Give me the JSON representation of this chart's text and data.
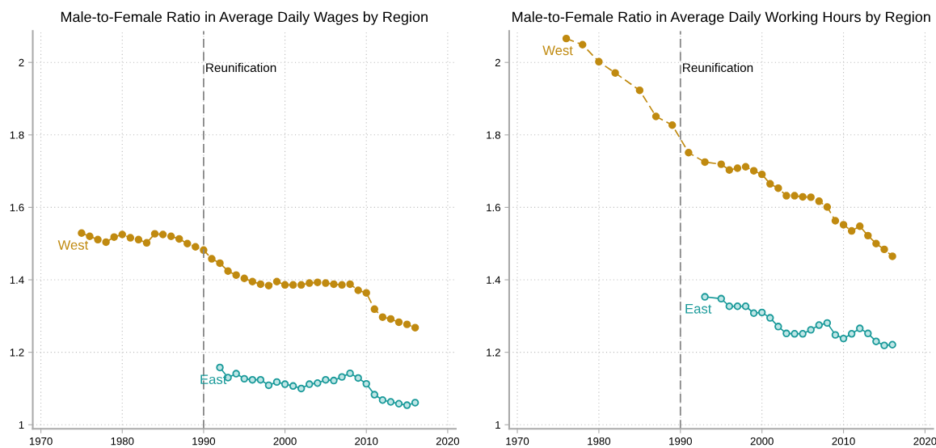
{
  "chart_data": [
    {
      "type": "line",
      "title": "Male-to-Female Ratio in Average Daily Wages by Region",
      "xlim": [
        1969,
        2021
      ],
      "ylim": [
        0.989,
        2.087
      ],
      "xticks": [
        1970,
        1980,
        1990,
        2000,
        2010,
        2020
      ],
      "yticks": [
        1,
        1.2,
        1.4,
        1.6,
        1.8,
        2
      ],
      "grid": true,
      "legend": false,
      "marker": "circle",
      "ref_lines": [
        {
          "axis": "x",
          "value": 1990,
          "label": "Reunification",
          "color": "#888888",
          "line_style": "dashed"
        }
      ],
      "series": [
        {
          "name": "West",
          "color": "#c08a10",
          "line_style": "dashed",
          "x": [
            1975,
            1976,
            1977,
            1978,
            1979,
            1980,
            1981,
            1982,
            1983,
            1984,
            1985,
            1986,
            1987,
            1988,
            1989,
            1990,
            1991,
            1992,
            1993,
            1994,
            1995,
            1996,
            1997,
            1998,
            1999,
            2000,
            2001,
            2002,
            2003,
            2004,
            2005,
            2006,
            2007,
            2008,
            2009,
            2010,
            2011,
            2012,
            2013,
            2014,
            2015,
            2016
          ],
          "values": [
            1.529,
            1.52,
            1.511,
            1.504,
            1.518,
            1.525,
            1.516,
            1.511,
            1.502,
            1.527,
            1.525,
            1.52,
            1.513,
            1.5,
            1.491,
            1.482,
            1.458,
            1.446,
            1.424,
            1.413,
            1.404,
            1.395,
            1.388,
            1.384,
            1.395,
            1.386,
            1.386,
            1.386,
            1.391,
            1.393,
            1.391,
            1.388,
            1.386,
            1.388,
            1.371,
            1.364,
            1.319,
            1.297,
            1.292,
            1.283,
            1.277,
            1.268
          ]
        },
        {
          "name": "East",
          "color": "#1a9a9a",
          "line_style": "solid",
          "x": [
            1992,
            1993,
            1994,
            1995,
            1996,
            1997,
            1998,
            1999,
            2000,
            2001,
            2002,
            2003,
            2004,
            2005,
            2006,
            2007,
            2008,
            2009,
            2010,
            2011,
            2012,
            2013,
            2014,
            2015,
            2016
          ],
          "values": [
            1.158,
            1.13,
            1.141,
            1.127,
            1.124,
            1.124,
            1.109,
            1.118,
            1.112,
            1.107,
            1.1,
            1.112,
            1.115,
            1.124,
            1.122,
            1.132,
            1.142,
            1.129,
            1.113,
            1.083,
            1.068,
            1.063,
            1.058,
            1.054,
            1.061
          ]
        }
      ]
    },
    {
      "type": "line",
      "title": "Male-to-Female Ratio in Average Daily Working Hours by Region",
      "xlim": [
        1969,
        2021
      ],
      "ylim": [
        0.989,
        2.087
      ],
      "xticks": [
        1970,
        1980,
        1990,
        2000,
        2010,
        2020
      ],
      "yticks": [
        1,
        1.2,
        1.4,
        1.6,
        1.8,
        2
      ],
      "grid": true,
      "legend": false,
      "marker": "circle",
      "ref_lines": [
        {
          "axis": "x",
          "value": 1990,
          "label": "Reunification",
          "color": "#888888",
          "line_style": "dashed"
        }
      ],
      "series": [
        {
          "name": "West",
          "color": "#c08a10",
          "line_style": "dashed",
          "x": [
            1976,
            1978,
            1980,
            1982,
            1985,
            1987,
            1989,
            1991,
            1993,
            1995,
            1996,
            1997,
            1998,
            1999,
            2000,
            2001,
            2002,
            2003,
            2004,
            2005,
            2006,
            2007,
            2008,
            2009,
            2010,
            2011,
            2012,
            2013,
            2014,
            2015,
            2016
          ],
          "values": [
            2.066,
            2.049,
            2.002,
            1.971,
            1.923,
            1.851,
            1.827,
            1.751,
            1.725,
            1.719,
            1.703,
            1.708,
            1.712,
            1.701,
            1.691,
            1.665,
            1.653,
            1.632,
            1.632,
            1.629,
            1.628,
            1.617,
            1.601,
            1.563,
            1.552,
            1.535,
            1.548,
            1.522,
            1.5,
            1.484,
            1.465
          ]
        },
        {
          "name": "East",
          "color": "#1a9a9a",
          "line_style": "solid",
          "x": [
            1993,
            1995,
            1996,
            1997,
            1998,
            1999,
            2000,
            2001,
            2002,
            2003,
            2004,
            2005,
            2006,
            2007,
            2008,
            2009,
            2010,
            2011,
            2012,
            2013,
            2014,
            2015,
            2016
          ],
          "values": [
            1.353,
            1.348,
            1.327,
            1.327,
            1.327,
            1.308,
            1.31,
            1.295,
            1.271,
            1.252,
            1.251,
            1.251,
            1.262,
            1.275,
            1.281,
            1.248,
            1.238,
            1.251,
            1.266,
            1.252,
            1.23,
            1.219,
            1.221
          ]
        }
      ]
    }
  ]
}
